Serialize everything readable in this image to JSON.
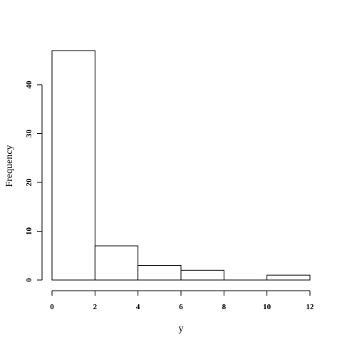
{
  "chart_data": {
    "type": "bar",
    "title": "",
    "xlabel": "y",
    "ylabel": "Frequency",
    "bins": [
      {
        "start": 0,
        "end": 2,
        "count": 47
      },
      {
        "start": 2,
        "end": 4,
        "count": 7
      },
      {
        "start": 4,
        "end": 6,
        "count": 3
      },
      {
        "start": 6,
        "end": 8,
        "count": 2
      },
      {
        "start": 8,
        "end": 10,
        "count": 0
      },
      {
        "start": 10,
        "end": 12,
        "count": 1
      }
    ],
    "xlim": [
      0,
      12
    ],
    "ylim": [
      0,
      47
    ],
    "x_ticks": [
      "0",
      "2",
      "4",
      "6",
      "8",
      "10",
      "12"
    ],
    "y_ticks": [
      "0",
      "10",
      "20",
      "30",
      "40"
    ],
    "grid": false,
    "bar_fill": "#ffffff",
    "bar_stroke": "#000000"
  }
}
